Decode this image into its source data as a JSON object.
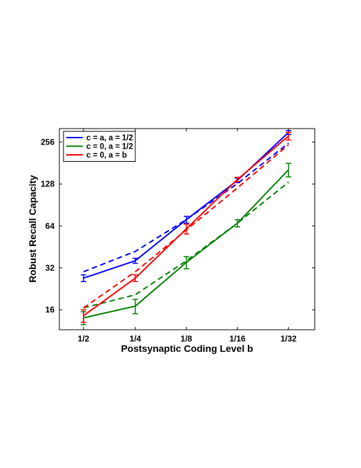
{
  "chart_data": {
    "type": "line",
    "xlabel": "Postsynaptic Coding Level b",
    "ylabel": "Robust Recall Capacity",
    "categories": [
      "1/2",
      "1/4",
      "1/8",
      "1/16",
      "1/32"
    ],
    "y_scale": "log2",
    "ylim": [
      11.5,
      320
    ],
    "yticks": [
      16,
      32,
      64,
      128,
      256
    ],
    "grid": false,
    "legend_position": "top-left",
    "series": [
      {
        "name": "c = a, a = 1/2",
        "color": "#0000ff",
        "style": "solid",
        "values": [
          27,
          36,
          71,
          136,
          300
        ],
        "error": [
          1.5,
          1.5,
          4,
          5,
          10
        ]
      },
      {
        "name": "c = 0, a = 1/2",
        "color": "#008000",
        "style": "solid",
        "values": [
          14,
          17,
          35,
          67,
          162
        ],
        "error": [
          1.5,
          2,
          3.5,
          4,
          18
        ]
      },
      {
        "name": "c = 0, a = b",
        "color": "#ff0000",
        "style": "solid",
        "values": [
          14.5,
          27,
          61,
          138,
          283
        ],
        "error": [
          1.5,
          1.5,
          5,
          5,
          18
        ]
      },
      {
        "color": "#0000ff",
        "style": "dashed",
        "values": [
          30,
          42,
          71,
          129,
          252
        ]
      },
      {
        "color": "#008000",
        "style": "dashed",
        "values": [
          16.5,
          20.5,
          36,
          67,
          132
        ]
      },
      {
        "color": "#ff0000",
        "style": "dashed",
        "values": [
          16.5,
          30,
          60,
          120,
          245
        ]
      }
    ]
  }
}
